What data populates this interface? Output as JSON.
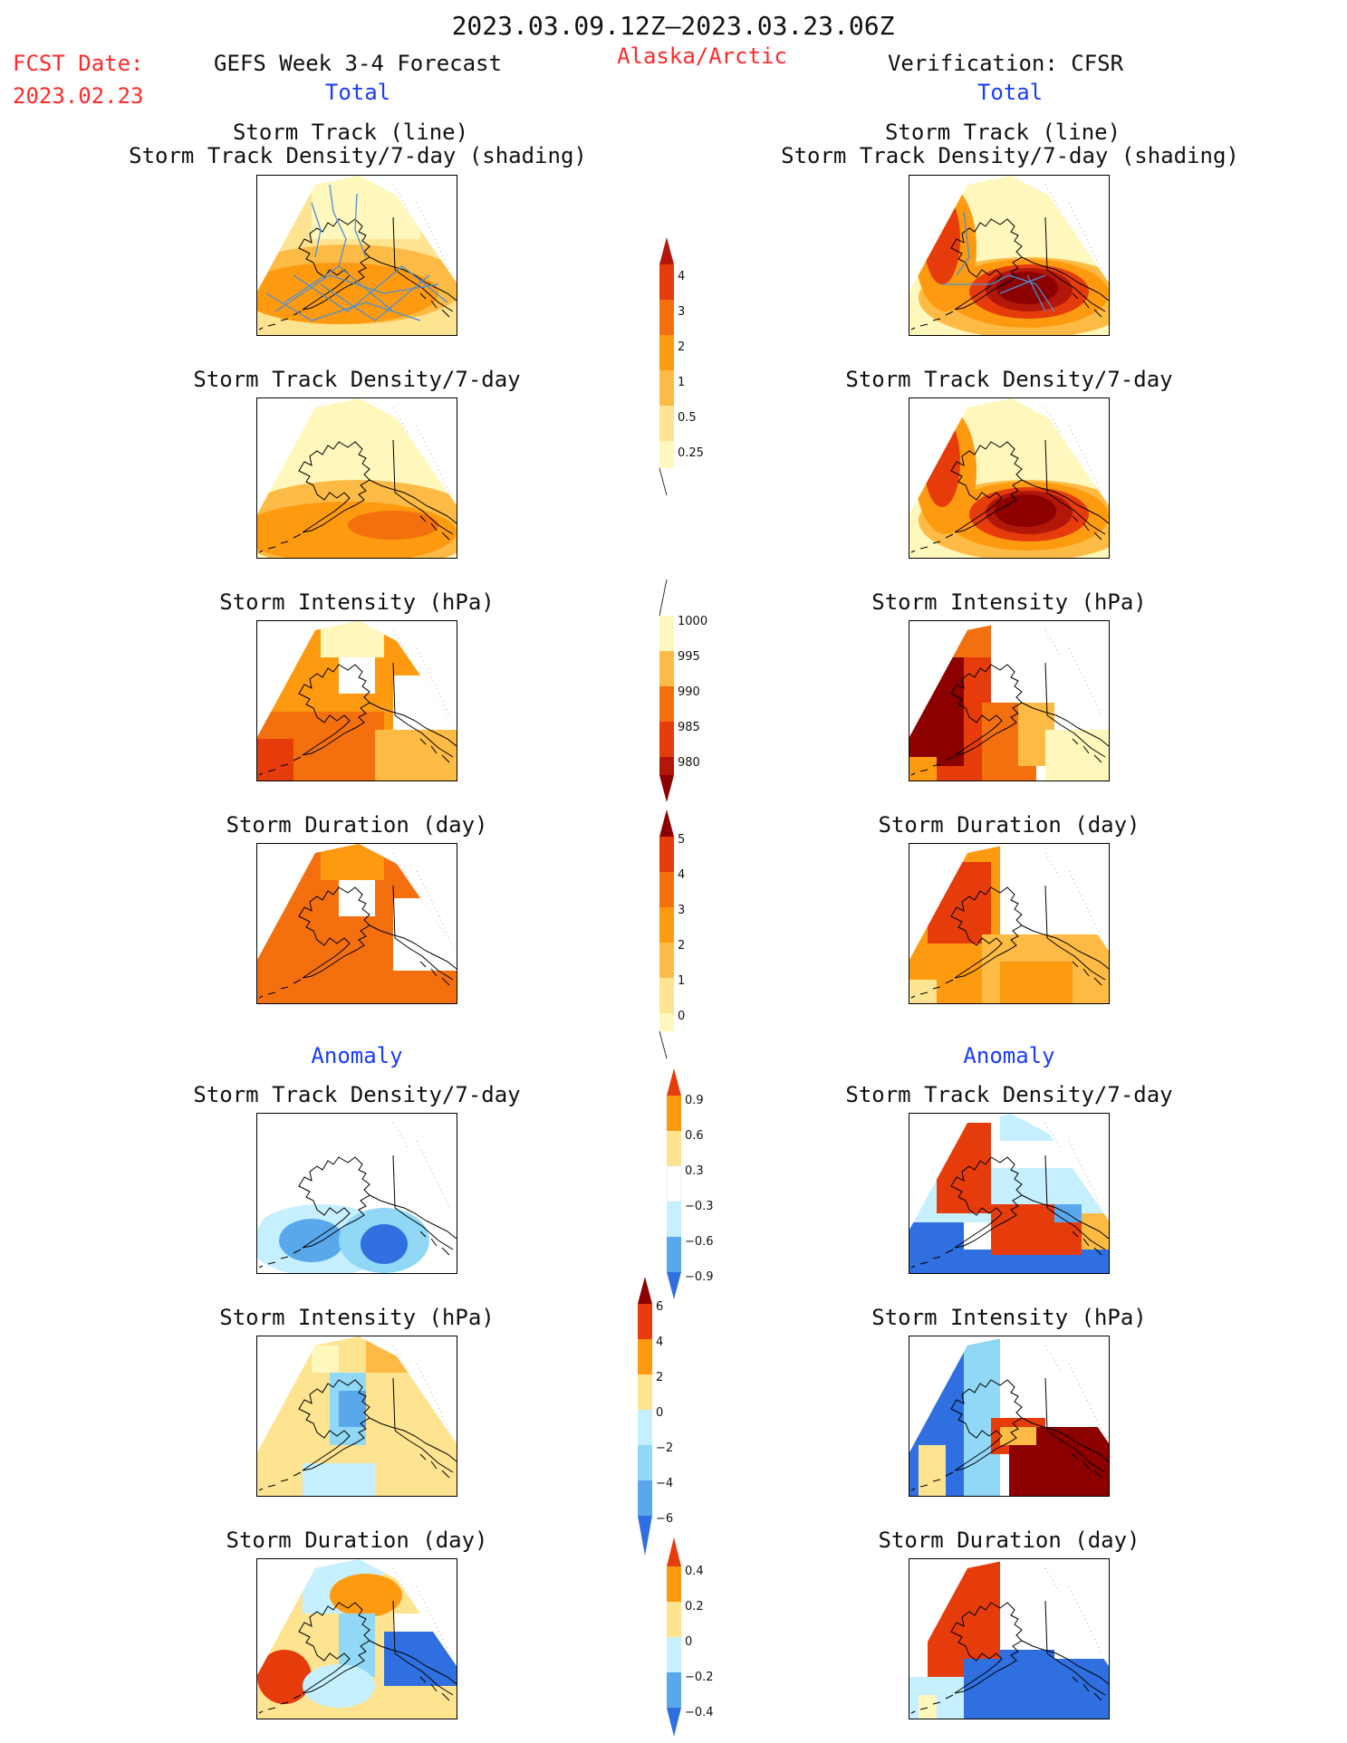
{
  "header": {
    "date_range": "2023.03.09.12Z–2023.03.23.06Z",
    "fcst_label": "FCST Date:",
    "fcst_date": "2023.02.23",
    "left_title": "GEFS Week 3-4 Forecast",
    "region": "Alaska/Arctic",
    "right_title": "Verification: CFSR",
    "total_label": "Total",
    "anomaly_label": "Anomaly"
  },
  "panels": {
    "track_line": "Storm Track (line)",
    "track_shading": "Storm Track Density/7-day (shading)",
    "density": "Storm Track Density/7-day",
    "intensity": "Storm Intensity (hPa)",
    "duration": "Storm Duration (day)"
  },
  "colorbars": {
    "density": [
      "4",
      "3",
      "2",
      "1",
      "0.5",
      "0.25"
    ],
    "intensity": [
      "1000",
      "995",
      "990",
      "985",
      "980"
    ],
    "duration": [
      "5",
      "4",
      "3",
      "2",
      "1",
      "0"
    ],
    "density_anom": [
      "0.9",
      "0.6",
      "0.3",
      "−0.3",
      "−0.6",
      "−0.9"
    ],
    "intensity_anom": [
      "6",
      "4",
      "2",
      "0",
      "−2",
      "−4",
      "−6"
    ],
    "duration_anom": [
      "0.4",
      "0.2",
      "0",
      "−0.2",
      "−0.4"
    ]
  },
  "colors": {
    "warm": [
      "#fff7bc",
      "#fee391",
      "#fdbb45",
      "#fe9a10",
      "#f4700f",
      "#e63c0c",
      "#b2170a",
      "#8c0000"
    ],
    "cool": [
      "#c6f0ff",
      "#90d8f5",
      "#5aa8ec",
      "#2f6fe0",
      "#1a4fc6"
    ],
    "track": "#4a90d9"
  }
}
